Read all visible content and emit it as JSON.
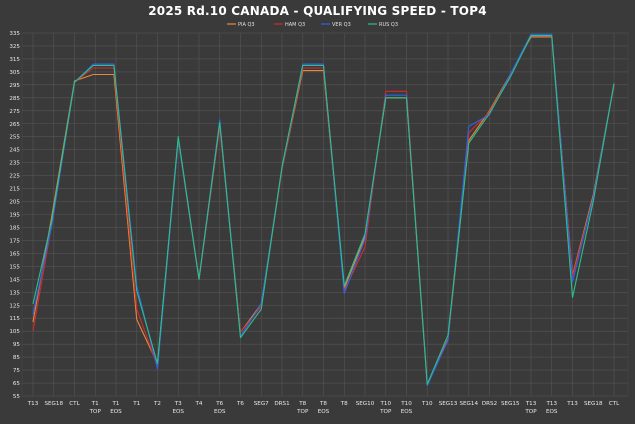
{
  "title": "2025 Rd.10 CANADA - QUALIFYING SPEED - TOP4",
  "colors": {
    "background": "#3a3a3a",
    "grid": "#555555",
    "text": "#e8e8e8"
  },
  "chart_data": {
    "type": "line",
    "title": "2025 Rd.10 CANADA - QUALIFYING SPEED - TOP4",
    "xlabel": "",
    "ylabel": "",
    "ylim": [
      55,
      335
    ],
    "yticks": [
      55,
      65,
      75,
      85,
      95,
      105,
      115,
      125,
      135,
      145,
      155,
      165,
      175,
      185,
      195,
      205,
      215,
      225,
      235,
      245,
      255,
      265,
      275,
      285,
      295,
      305,
      315,
      325,
      335
    ],
    "grid": true,
    "legend_position": "top-center",
    "categories": [
      "T13",
      "SEG18",
      "CTL",
      "T1\nTOP",
      "T1\nEOS",
      "T1",
      "T2",
      "T3\nEOS",
      "T4",
      "T6\nEOS",
      "T6",
      "SEG7",
      "DRS1",
      "T8\nTOP",
      "T8\nEOS",
      "T8",
      "SEG10",
      "T10\nTOP",
      "T10\nEOS",
      "T10",
      "SEG13",
      "SEG14",
      "DRS2",
      "SEG15",
      "T13\nTOP",
      "T13\nEOS",
      "T13",
      "SEG18",
      "CTL"
    ],
    "series": [
      {
        "name": "PIA Q3",
        "color": "#e8893a",
        "points": [
          [
            0,
            112
          ],
          [
            0.9,
            193
          ],
          [
            2,
            298
          ],
          [
            2.9,
            303
          ],
          [
            3.9,
            303
          ],
          [
            5,
            114
          ],
          [
            6,
            80
          ],
          [
            7,
            253
          ],
          [
            8,
            145
          ],
          [
            9,
            264
          ],
          [
            10,
            104
          ],
          [
            11,
            126
          ],
          [
            12,
            230
          ],
          [
            13,
            306
          ],
          [
            14,
            306
          ],
          [
            15,
            138
          ],
          [
            16,
            178
          ],
          [
            17,
            285
          ],
          [
            18,
            285
          ],
          [
            19,
            64
          ],
          [
            20,
            99
          ],
          [
            21,
            252
          ],
          [
            22,
            275
          ],
          [
            23,
            303
          ],
          [
            24,
            332
          ],
          [
            25,
            332
          ],
          [
            26,
            148
          ],
          [
            27,
            210
          ],
          [
            28,
            295
          ]
        ]
      },
      {
        "name": "HAM Q3",
        "color": "#d42b2b",
        "points": [
          [
            0,
            105
          ],
          [
            0.9,
            187
          ],
          [
            2,
            297
          ],
          [
            2.9,
            308
          ],
          [
            3.9,
            308
          ],
          [
            5,
            122
          ],
          [
            6,
            78
          ],
          [
            7,
            253
          ],
          [
            8,
            145
          ],
          [
            9,
            263
          ],
          [
            10,
            104
          ],
          [
            11,
            124
          ],
          [
            12,
            230
          ],
          [
            13,
            308
          ],
          [
            14,
            308
          ],
          [
            15,
            136
          ],
          [
            16,
            170
          ],
          [
            17,
            290
          ],
          [
            18,
            290
          ],
          [
            19,
            64
          ],
          [
            20,
            98
          ],
          [
            21,
            258
          ],
          [
            22,
            274
          ],
          [
            23,
            302
          ],
          [
            24,
            333
          ],
          [
            25,
            333
          ],
          [
            26,
            147
          ],
          [
            27,
            208
          ],
          [
            28,
            295
          ]
        ]
      },
      {
        "name": "VER Q3",
        "color": "#2f63e8",
        "points": [
          [
            0,
            118
          ],
          [
            0.9,
            186
          ],
          [
            2,
            297
          ],
          [
            2.9,
            311
          ],
          [
            3.9,
            311
          ],
          [
            5,
            140
          ],
          [
            6,
            76
          ],
          [
            7,
            253
          ],
          [
            8,
            145
          ],
          [
            9,
            268
          ],
          [
            10,
            101
          ],
          [
            11,
            126
          ],
          [
            12,
            231
          ],
          [
            13,
            311
          ],
          [
            14,
            311
          ],
          [
            15,
            134
          ],
          [
            16,
            176
          ],
          [
            17,
            287
          ],
          [
            18,
            287
          ],
          [
            19,
            63
          ],
          [
            20,
            98
          ],
          [
            21,
            263
          ],
          [
            22,
            272
          ],
          [
            23,
            303
          ],
          [
            24,
            334
          ],
          [
            25,
            334
          ],
          [
            26,
            143
          ],
          [
            27,
            208
          ],
          [
            28,
            296
          ]
        ]
      },
      {
        "name": "RUS Q3",
        "color": "#2bbf8a",
        "points": [
          [
            0,
            126
          ],
          [
            0.9,
            190
          ],
          [
            2,
            297
          ],
          [
            2.9,
            310
          ],
          [
            3.9,
            310
          ],
          [
            5,
            136
          ],
          [
            6,
            80
          ],
          [
            7,
            255
          ],
          [
            8,
            145
          ],
          [
            9,
            266
          ],
          [
            10,
            100
          ],
          [
            11,
            122
          ],
          [
            12,
            232
          ],
          [
            13,
            310
          ],
          [
            14,
            310
          ],
          [
            15,
            140
          ],
          [
            16,
            180
          ],
          [
            17,
            285
          ],
          [
            18,
            285
          ],
          [
            19,
            64
          ],
          [
            20,
            102
          ],
          [
            21,
            250
          ],
          [
            22,
            273
          ],
          [
            23,
            301
          ],
          [
            24,
            333
          ],
          [
            25,
            333
          ],
          [
            26,
            131
          ],
          [
            27,
            205
          ],
          [
            28,
            296
          ]
        ]
      }
    ]
  }
}
